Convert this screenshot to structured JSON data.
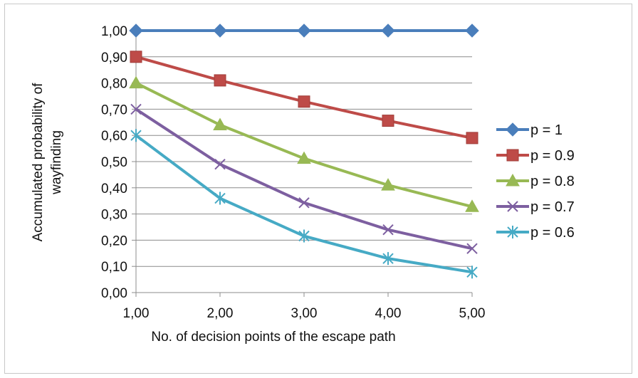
{
  "chart_data": {
    "type": "line",
    "title": "",
    "xlabel": "No. of decision points of the escape path",
    "ylabel": "Accumulated probability of wayfinding",
    "ylabel_lines": [
      "Accumulated probability of",
      "wayfinding"
    ],
    "x": [
      1,
      2,
      3,
      4,
      5
    ],
    "x_tick_labels": [
      "1,00",
      "2,00",
      "3,00",
      "4,00",
      "5,00"
    ],
    "y_tick_labels": [
      "0,00",
      "0,10",
      "0,20",
      "0,30",
      "0,40",
      "0,50",
      "0,60",
      "0,70",
      "0,80",
      "0,90",
      "1,00"
    ],
    "xlim": [
      1,
      5
    ],
    "ylim": [
      0,
      1
    ],
    "grid": "horizontal",
    "legend": "right",
    "series": [
      {
        "name": "p = 1",
        "values": [
          1.0,
          1.0,
          1.0,
          1.0,
          1.0
        ],
        "color": "#4a7ebb",
        "marker": "diamond"
      },
      {
        "name": "p = 0.9",
        "values": [
          0.9,
          0.81,
          0.729,
          0.656,
          0.59
        ],
        "color": "#be4b48",
        "marker": "square"
      },
      {
        "name": "p = 0.8",
        "values": [
          0.8,
          0.64,
          0.512,
          0.41,
          0.328
        ],
        "color": "#98b954",
        "marker": "triangle"
      },
      {
        "name": "p = 0.7",
        "values": [
          0.7,
          0.49,
          0.343,
          0.24,
          0.168
        ],
        "color": "#7d5fa0",
        "marker": "x"
      },
      {
        "name": "p = 0.6",
        "values": [
          0.6,
          0.36,
          0.216,
          0.13,
          0.078
        ],
        "color": "#46aac5",
        "marker": "star"
      }
    ]
  }
}
